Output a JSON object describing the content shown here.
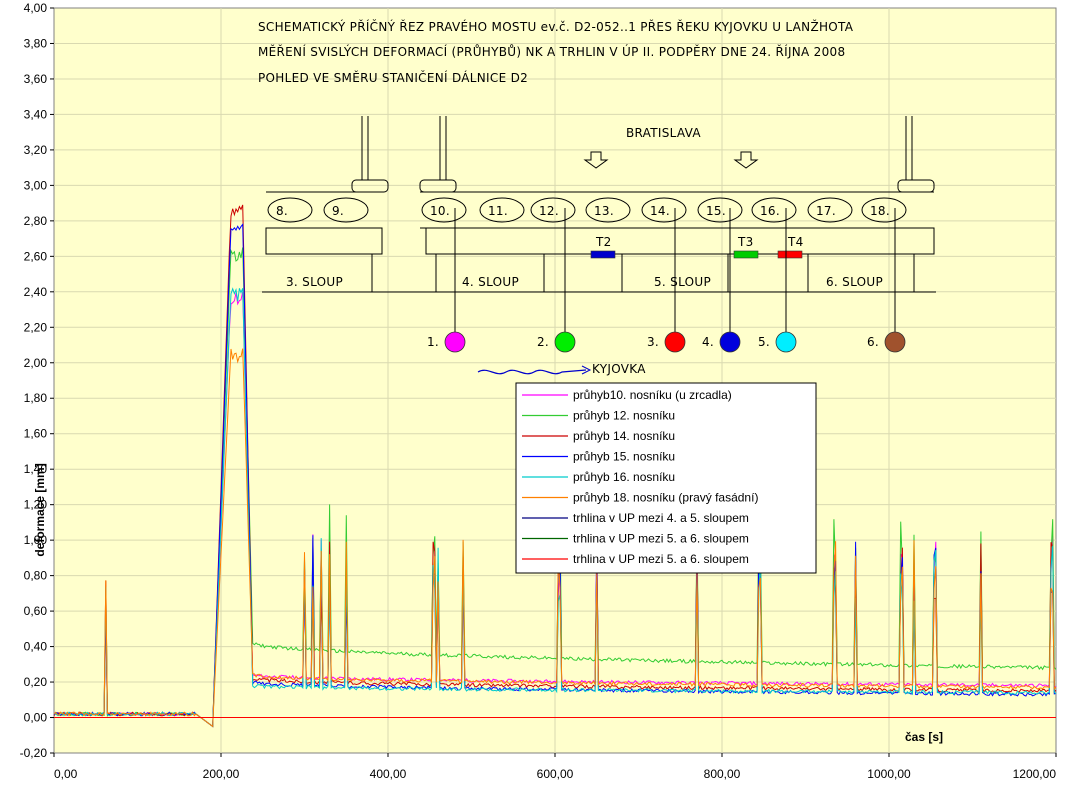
{
  "chart_data": {
    "type": "line",
    "title_lines": [
      "SCHEMATICKÝ PŘÍČNÝ ŘEZ PRAVÉHO MOSTU ev.č. D2-052..1 PŘES ŘEKU KYJOVKU U LANŽHOTA",
      "MĚŘENÍ SVISLÝCH DEFORMACÍ (PRŮHYBŮ) NK A TRHLIN V ÚP II. PODPĚRY DNE 24. ŘÍJNA 2008",
      "POHLED VE SMĚRU STANIČENÍ DÁLNICE D2"
    ],
    "xlabel": "čas [s]",
    "ylabel": "deformace [mm]",
    "xlim": [
      0,
      1200
    ],
    "ylim": [
      -0.2,
      4.0
    ],
    "x_ticks": [
      "0,00",
      "200,00",
      "400,00",
      "600,00",
      "800,00",
      "1000,00",
      "1200,00"
    ],
    "y_ticks": [
      "-0,20",
      "0,00",
      "0,20",
      "0,40",
      "0,60",
      "0,80",
      "1,00",
      "1,20",
      "1,40",
      "1,60",
      "1,80",
      "2,00",
      "2,20",
      "2,40",
      "2,60",
      "2,80",
      "3,00",
      "3,20",
      "3,40",
      "3,60",
      "3,80",
      "4,00"
    ],
    "grid": true,
    "legend_position": "inside-center",
    "series": [
      {
        "name": "průhyb10. nosníku (u zrcadla)",
        "color": "#ff00ff",
        "peak": 2.4,
        "tail_start": 0.24,
        "tail_end": 0.18,
        "points": [
          [
            0,
            0.02
          ],
          [
            170,
            0.02
          ],
          [
            190,
            -0.05
          ],
          [
            215,
            2.4
          ],
          [
            225,
            2.35
          ],
          [
            235,
            0.3
          ],
          [
            300,
            0.22
          ],
          [
            600,
            0.2
          ],
          [
            900,
            0.19
          ],
          [
            1200,
            0.18
          ]
        ]
      },
      {
        "name": "průhyb 12. nosníku",
        "color": "#33cc33",
        "peak": 2.65,
        "tail_start": 0.42,
        "tail_end": 0.28,
        "points": [
          [
            0,
            0.02
          ],
          [
            170,
            0.02
          ],
          [
            190,
            -0.05
          ],
          [
            215,
            2.65
          ],
          [
            225,
            2.6
          ],
          [
            235,
            0.45
          ],
          [
            300,
            0.34
          ],
          [
            600,
            0.3
          ],
          [
            900,
            0.28
          ],
          [
            1200,
            0.28
          ]
        ]
      },
      {
        "name": "průhyb 14. nosníku",
        "color": "#cc0000",
        "peak": 2.89,
        "tail_start": 0.22,
        "tail_end": 0.15,
        "points": [
          [
            0,
            0.02
          ],
          [
            170,
            0.02
          ],
          [
            190,
            -0.05
          ],
          [
            215,
            2.89
          ],
          [
            225,
            2.8
          ],
          [
            235,
            0.26
          ],
          [
            300,
            0.2
          ],
          [
            600,
            0.17
          ],
          [
            900,
            0.16
          ],
          [
            1200,
            0.15
          ]
        ]
      },
      {
        "name": "průhyb 15. nosníku",
        "color": "#0000ff",
        "peak": 2.78,
        "tail_start": 0.2,
        "tail_end": 0.13,
        "points": [
          [
            0,
            0.02
          ],
          [
            170,
            0.02
          ],
          [
            190,
            -0.05
          ],
          [
            215,
            2.78
          ],
          [
            225,
            2.7
          ],
          [
            235,
            0.24
          ],
          [
            300,
            0.18
          ],
          [
            600,
            0.15
          ],
          [
            900,
            0.14
          ],
          [
            1200,
            0.13
          ]
        ]
      },
      {
        "name": "průhyb 16. nosníku",
        "color": "#00cccc",
        "peak": 2.42,
        "tail_start": 0.18,
        "tail_end": 0.14,
        "points": [
          [
            0,
            0.02
          ],
          [
            170,
            0.02
          ],
          [
            190,
            -0.05
          ],
          [
            215,
            2.42
          ],
          [
            225,
            2.36
          ],
          [
            235,
            0.2
          ],
          [
            300,
            0.16
          ],
          [
            600,
            0.15
          ],
          [
            900,
            0.15
          ],
          [
            1200,
            0.14
          ]
        ]
      },
      {
        "name": "průhyb 18. nosníku (pravý fasádní)",
        "color": "#ff8000",
        "peak": 2.08,
        "tail_start": 0.24,
        "tail_end": 0.17,
        "points": [
          [
            0,
            0.02
          ],
          [
            170,
            0.02
          ],
          [
            190,
            -0.05
          ],
          [
            215,
            2.08
          ],
          [
            225,
            2.05
          ],
          [
            235,
            0.28
          ],
          [
            300,
            0.22
          ],
          [
            600,
            0.19
          ],
          [
            900,
            0.18
          ],
          [
            1200,
            0.17
          ]
        ]
      },
      {
        "name": "trhlina v UP mezi 4. a 5. sloupem",
        "color": "#000080",
        "peak": 0.0,
        "tail_start": 0.0,
        "tail_end": 0.0,
        "points": [
          [
            0,
            0.0
          ],
          [
            1200,
            0.0
          ]
        ]
      },
      {
        "name": "trhlina v UP mezi 5. a 6. sloupem",
        "color": "#006600",
        "peak": 0.0,
        "tail_start": 0.0,
        "tail_end": 0.0,
        "points": [
          [
            0,
            0.0
          ],
          [
            1200,
            0.0
          ]
        ]
      },
      {
        "name": "trhlina v UP mezi 5. a 6. sloupem",
        "color": "#ff0000",
        "peak": 0.0,
        "tail_start": 0.0,
        "tail_end": 0.0,
        "points": [
          [
            0,
            0.0
          ],
          [
            1200,
            0.0
          ]
        ]
      }
    ],
    "spike_times": [
      62,
      300,
      310,
      320,
      330,
      350,
      455,
      460,
      490,
      605,
      650,
      770,
      845,
      935,
      960,
      1015,
      1030,
      1055,
      1110,
      1195
    ]
  },
  "diagram": {
    "direction_label": "BRATISLAVA",
    "river_label": "KYJOVKA",
    "beams": [
      "8.",
      "9.",
      "10.",
      "11.",
      "12.",
      "13.",
      "14.",
      "15.",
      "16.",
      "17.",
      "18."
    ],
    "columns": [
      "3. SLOUP",
      "4. SLOUP",
      "5. SLOUP",
      "6. SLOUP"
    ],
    "gauges": [
      "T2",
      "T3",
      "T4"
    ],
    "gauge_colors": [
      "#0000cc",
      "#00cc00",
      "#ff0000"
    ],
    "sensors": [
      {
        "label": "1.",
        "color": "#ff00ff"
      },
      {
        "label": "2.",
        "color": "#00ee00"
      },
      {
        "label": "3.",
        "color": "#ff0000"
      },
      {
        "label": "4.",
        "color": "#0000dd"
      },
      {
        "label": "5.",
        "color": "#00eeff"
      },
      {
        "label": "6.",
        "color": "#a0522d"
      }
    ]
  },
  "colors": {
    "plot_background": "#ffffcc",
    "grid": "#d9d9b0"
  }
}
